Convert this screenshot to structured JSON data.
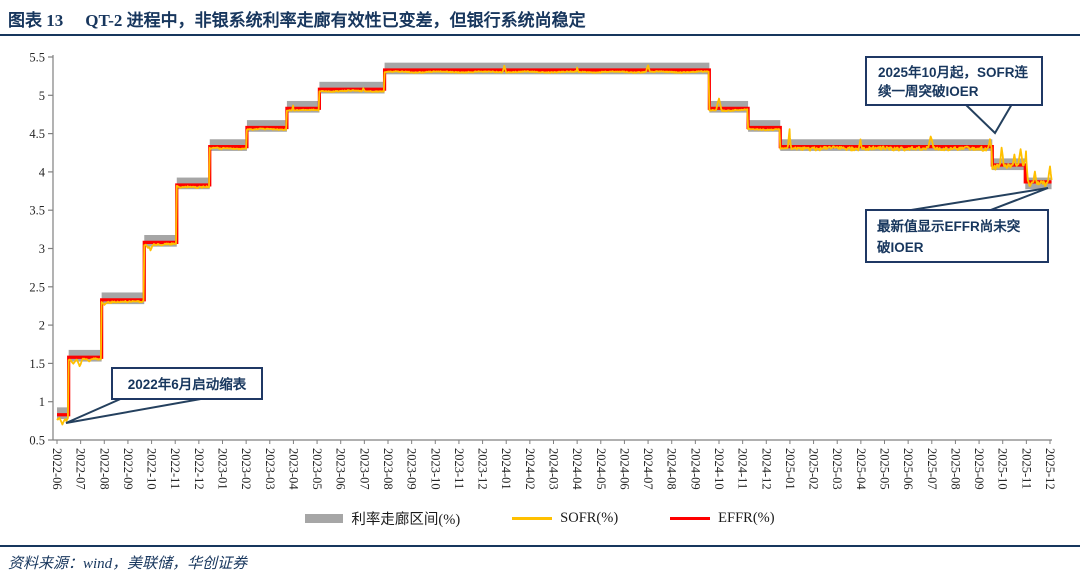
{
  "page": {
    "title_prefix": "图表 13",
    "title": "QT-2 进程中，非银系统利率走廊有效性已变差，但银行系统尚稳定",
    "source": "资料来源：wind，美联储，华创证券"
  },
  "colors": {
    "navy": "#17365d",
    "band": "#A6A6A6",
    "sofr": "#FFC000",
    "effr": "#FF0000",
    "axis": "#808080",
    "tick_text": "#262626"
  },
  "legend": [
    {
      "label": "利率走廊区间(%)",
      "type": "band",
      "color": "#A6A6A6"
    },
    {
      "label": "SOFR(%)",
      "type": "line",
      "color": "#FFC000"
    },
    {
      "label": "EFFR(%)",
      "type": "line",
      "color": "#FF0000"
    }
  ],
  "annotations": {
    "box1": {
      "line1": "2025年10月起，SOFR连",
      "line2": "续一周突破IOER"
    },
    "box2": {
      "line1": "最新值显示EFFR尚未突",
      "line2": "破IOER"
    },
    "box3": {
      "line1": "2022年6月启动缩表"
    }
  },
  "chart_data": {
    "type": "line",
    "title": "QT-2 进程中，非银系统利率走廊有效性已变差，但银行系统尚稳定",
    "xlabel": "",
    "ylabel": "",
    "ylim": [
      0.5,
      5.5
    ],
    "grid": false,
    "legend_position": "bottom",
    "y_ticks": [
      0.5,
      1,
      1.5,
      2,
      2.5,
      3,
      3.5,
      4,
      4.5,
      5,
      5.5
    ],
    "x_start": "2022-06-01",
    "x_end": "2025-12-03",
    "x_tick_labels": [
      "2022-06",
      "2022-07",
      "2022-08",
      "2022-09",
      "2022-10",
      "2022-11",
      "2022-12",
      "2023-01",
      "2023-02",
      "2023-03",
      "2023-04",
      "2023-05",
      "2023-06",
      "2023-07",
      "2023-08",
      "2023-09",
      "2023-10",
      "2023-11",
      "2023-12",
      "2024-01",
      "2024-02",
      "2024-03",
      "2024-04",
      "2024-05",
      "2024-06",
      "2024-07",
      "2024-08",
      "2024-09",
      "2024-10",
      "2024-11",
      "2024-12",
      "2025-01",
      "2025-02",
      "2025-03",
      "2025-04",
      "2025-05",
      "2025-06",
      "2025-07",
      "2025-08",
      "2025-09",
      "2025-10",
      "2025-11",
      "2025-12"
    ],
    "series": [
      {
        "name": "利率走廊区间(%)",
        "type": "band",
        "color": "#A6A6A6"
      },
      {
        "name": "SOFR(%)",
        "type": "line",
        "color": "#FFC000"
      },
      {
        "name": "EFFR(%)",
        "type": "line",
        "color": "#FF0000"
      }
    ],
    "corridor_steps": [
      {
        "date": "2022-06-01",
        "low": 0.8,
        "high": 0.9,
        "effr": 0.83
      },
      {
        "date": "2022-06-16",
        "low": 1.55,
        "high": 1.65,
        "effr": 1.58
      },
      {
        "date": "2022-07-28",
        "low": 2.3,
        "high": 2.4,
        "effr": 2.33
      },
      {
        "date": "2022-09-22",
        "low": 3.05,
        "high": 3.15,
        "effr": 3.08
      },
      {
        "date": "2022-11-03",
        "low": 3.8,
        "high": 3.9,
        "effr": 3.83
      },
      {
        "date": "2022-12-15",
        "low": 4.3,
        "high": 4.4,
        "effr": 4.33
      },
      {
        "date": "2023-02-02",
        "low": 4.55,
        "high": 4.65,
        "effr": 4.58
      },
      {
        "date": "2023-03-23",
        "low": 4.8,
        "high": 4.9,
        "effr": 4.83
      },
      {
        "date": "2023-05-04",
        "low": 5.05,
        "high": 5.15,
        "effr": 5.08
      },
      {
        "date": "2023-07-27",
        "low": 5.3,
        "high": 5.4,
        "effr": 5.33
      },
      {
        "date": "2024-09-19",
        "low": 4.8,
        "high": 4.9,
        "effr": 4.83
      },
      {
        "date": "2024-11-08",
        "low": 4.55,
        "high": 4.65,
        "effr": 4.58
      },
      {
        "date": "2024-12-19",
        "low": 4.3,
        "high": 4.4,
        "effr": 4.33
      },
      {
        "date": "2025-09-18",
        "low": 4.05,
        "high": 4.15,
        "effr": 4.09
      },
      {
        "date": "2025-10-30",
        "low": 3.8,
        "high": 3.9,
        "effr": 3.87
      }
    ],
    "sofr_base_offset": -0.025,
    "sofr_events": [
      {
        "date": "2022-06-02",
        "value": 0.77,
        "width": 3
      },
      {
        "date": "2022-06-08",
        "value": 0.71,
        "width": 4
      },
      {
        "date": "2022-06-13",
        "value": 0.75,
        "width": 2
      },
      {
        "date": "2022-06-22",
        "value": 1.5,
        "width": 4
      },
      {
        "date": "2022-06-30",
        "value": 1.46,
        "width": 3
      },
      {
        "date": "2022-07-12",
        "value": 1.52,
        "width": 3
      },
      {
        "date": "2022-08-01",
        "value": 2.27,
        "width": 4
      },
      {
        "date": "2022-08-31",
        "value": 2.29,
        "width": 2
      },
      {
        "date": "2022-09-27",
        "value": 3.01,
        "width": 3
      },
      {
        "date": "2022-09-30",
        "value": 2.98,
        "width": 2
      },
      {
        "date": "2022-10-14",
        "value": 3.04,
        "width": 3
      },
      {
        "date": "2022-11-08",
        "value": 3.79,
        "width": 3
      },
      {
        "date": "2022-12-20",
        "value": 4.31,
        "width": 2
      },
      {
        "date": "2022-12-30",
        "value": 4.29,
        "width": 2
      },
      {
        "date": "2023-02-06",
        "value": 4.56,
        "width": 2
      },
      {
        "date": "2023-03-27",
        "value": 4.81,
        "width": 2
      },
      {
        "date": "2023-03-31",
        "value": 4.87,
        "width": 1
      },
      {
        "date": "2023-05-08",
        "value": 5.06,
        "width": 2
      },
      {
        "date": "2023-06-30",
        "value": 5.09,
        "width": 1
      },
      {
        "date": "2023-12-29",
        "value": 5.39,
        "width": 2
      },
      {
        "date": "2024-04-01",
        "value": 5.36,
        "width": 1
      },
      {
        "date": "2024-07-01",
        "value": 5.39,
        "width": 2
      },
      {
        "date": "2024-10-01",
        "value": 4.96,
        "width": 3
      },
      {
        "date": "2024-12-31",
        "value": 4.55,
        "width": 2
      },
      {
        "date": "2025-03-31",
        "value": 4.43,
        "width": 2
      },
      {
        "date": "2025-06-30",
        "value": 4.46,
        "width": 3
      },
      {
        "date": "2025-09-15",
        "value": 4.43,
        "width": 2
      },
      {
        "date": "2025-09-30",
        "value": 4.32,
        "width": 2
      },
      {
        "date": "2025-10-16",
        "value": 4.23,
        "width": 2
      },
      {
        "date": "2025-10-24",
        "value": 4.3,
        "width": 3
      },
      {
        "date": "2025-10-31",
        "value": 4.27,
        "width": 3
      },
      {
        "date": "2025-11-12",
        "value": 4.01,
        "width": 2
      },
      {
        "date": "2025-11-20",
        "value": 3.88,
        "width": 2
      },
      {
        "date": "2025-12-01",
        "value": 4.06,
        "width": 2
      }
    ]
  }
}
